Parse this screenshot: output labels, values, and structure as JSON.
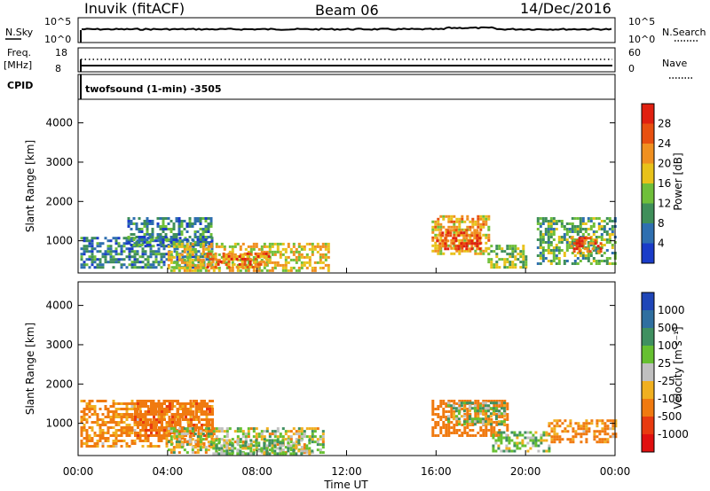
{
  "header": {
    "station": "Inuvik (fitACF)",
    "beam": "Beam 06",
    "date": "14/Dec/2016"
  },
  "strips": {
    "nsky_label": "N.Sky",
    "nsky_top": "10^5",
    "nsky_bottom": "10^0",
    "nsearch_label": "N.Search",
    "nsearch_top": "10^5",
    "nsearch_bottom": "10^0",
    "freq_label_1": "Freq.",
    "freq_label_2": "[MHz]",
    "freq_top": "18",
    "freq_bottom": "8",
    "nave_label": "Nave",
    "nave_top": "60",
    "nave_bottom": "0",
    "cpid_label": "CPID",
    "cpid_text": "twofsound (1-min) -3505"
  },
  "x_axis": {
    "label": "Time UT",
    "ticks": [
      "00:00",
      "04:00",
      "08:00",
      "12:00",
      "16:00",
      "20:00",
      "00:00"
    ]
  },
  "y_axis": {
    "label": "Slant Range [km]",
    "ticks": [
      "1000",
      "2000",
      "3000",
      "4000"
    ]
  },
  "power_scale": {
    "label": "Power [dB]",
    "ticks": [
      "4",
      "8",
      "12",
      "16",
      "20",
      "24",
      "28"
    ],
    "colors": [
      "#1a3cc8",
      "#2f6fb0",
      "#3f8f5a",
      "#6fbf3a",
      "#e8c21a",
      "#f09020",
      "#e85010",
      "#e02010"
    ]
  },
  "velocity_scale": {
    "label": "Velocity [m s⁻¹]",
    "ticks": [
      "1000",
      "500",
      "100",
      "25",
      "-25",
      "-100",
      "-500",
      "-1000"
    ],
    "colors": [
      "#1f46b8",
      "#2f6fa0",
      "#3f9060",
      "#66c030",
      "#c0c0c0",
      "#f0b020",
      "#f07a10",
      "#e83a10",
      "#e01010"
    ]
  },
  "chart_data": [
    {
      "type": "heatmap",
      "title": "Power",
      "xlabel": "Time UT",
      "ylabel": "Slant Range [km]",
      "xlim": [
        0,
        24
      ],
      "ylim": [
        180,
        4600
      ],
      "colorbar_label": "Power [dB]",
      "colorbar_ticks": [
        4,
        8,
        12,
        16,
        20,
        24,
        28
      ],
      "regions": [
        {
          "t0": 0.1,
          "t1": 6.0,
          "r0": 350,
          "r1": 1100,
          "level": 8
        },
        {
          "t0": 2.2,
          "t1": 6.0,
          "r0": 900,
          "r1": 1600,
          "level": 8
        },
        {
          "t0": 4.0,
          "t1": 11.2,
          "r0": 250,
          "r1": 950,
          "level": 18
        },
        {
          "t0": 5.5,
          "t1": 8.5,
          "r0": 300,
          "r1": 700,
          "level": 24
        },
        {
          "t0": 15.8,
          "t1": 18.3,
          "r0": 700,
          "r1": 1650,
          "level": 20
        },
        {
          "t0": 16.0,
          "t1": 18.0,
          "r0": 800,
          "r1": 1300,
          "level": 26
        },
        {
          "t0": 18.3,
          "t1": 20.0,
          "r0": 350,
          "r1": 900,
          "level": 14
        },
        {
          "t0": 20.5,
          "t1": 24.0,
          "r0": 400,
          "r1": 1600,
          "level": 12
        },
        {
          "t0": 22.0,
          "t1": 23.4,
          "r0": 700,
          "r1": 1100,
          "level": 26
        }
      ]
    },
    {
      "type": "heatmap",
      "title": "Velocity",
      "xlabel": "Time UT",
      "ylabel": "Slant Range [km]",
      "xlim": [
        0,
        24
      ],
      "ylim": [
        180,
        4600
      ],
      "colorbar_label": "Velocity [m s⁻¹]",
      "colorbar_ticks": [
        1000,
        500,
        100,
        25,
        -25,
        -100,
        -500,
        -1000
      ],
      "regions": [
        {
          "t0": 0.1,
          "t1": 6.0,
          "r0": 400,
          "r1": 1600,
          "level": -150
        },
        {
          "t0": 2.5,
          "t1": 6.0,
          "r0": 700,
          "r1": 1600,
          "level": -400
        },
        {
          "t0": 4.0,
          "t1": 11.0,
          "r0": 250,
          "r1": 900,
          "level": 0
        },
        {
          "t0": 6.0,
          "t1": 10.5,
          "r0": 250,
          "r1": 600,
          "level": 80
        },
        {
          "t0": 15.8,
          "t1": 19.2,
          "r0": 700,
          "r1": 1600,
          "level": -300
        },
        {
          "t0": 16.5,
          "t1": 19.0,
          "r0": 1000,
          "r1": 1550,
          "level": 60
        },
        {
          "t0": 18.5,
          "t1": 21.0,
          "r0": 300,
          "r1": 800,
          "level": 40
        },
        {
          "t0": 21.0,
          "t1": 24.0,
          "r0": 500,
          "r1": 1100,
          "level": -150
        }
      ]
    }
  ]
}
